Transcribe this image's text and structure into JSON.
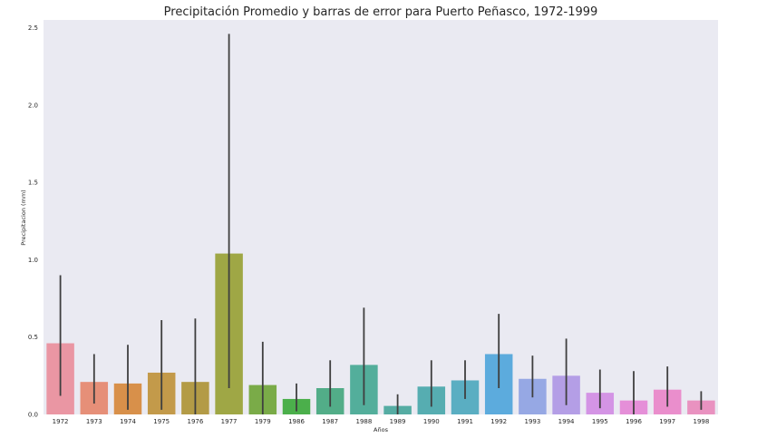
{
  "chart_data": {
    "type": "bar",
    "title": "Precipitación Promedio y barras de error para Puerto Peñasco, 1972-1999",
    "xlabel": "Años",
    "ylabel": "Precipitacion (mm)",
    "ylim": [
      0,
      2.55
    ],
    "yticks": [
      "0.0",
      "0.5",
      "1.0",
      "1.5",
      "2.0",
      "2.5"
    ],
    "categories": [
      "1972",
      "1973",
      "1974",
      "1975",
      "1976",
      "1977",
      "1979",
      "1986",
      "1987",
      "1988",
      "1989",
      "1990",
      "1991",
      "1992",
      "1993",
      "1994",
      "1995",
      "1996",
      "1997",
      "1998"
    ],
    "values": [
      0.46,
      0.21,
      0.2,
      0.27,
      0.21,
      1.04,
      0.19,
      0.1,
      0.17,
      0.32,
      0.055,
      0.18,
      0.22,
      0.39,
      0.23,
      0.25,
      0.14,
      0.09,
      0.16,
      0.09
    ],
    "error_low": [
      0.12,
      0.07,
      0.03,
      0.03,
      0.0,
      0.17,
      0.0,
      0.02,
      0.05,
      0.06,
      0.0,
      0.05,
      0.1,
      0.17,
      0.11,
      0.06,
      0.04,
      0.0,
      0.05,
      0.03
    ],
    "error_high": [
      0.9,
      0.39,
      0.45,
      0.61,
      0.62,
      2.46,
      0.47,
      0.2,
      0.35,
      0.69,
      0.13,
      0.35,
      0.35,
      0.65,
      0.38,
      0.49,
      0.29,
      0.28,
      0.31,
      0.15
    ],
    "colors": [
      "#ea96a3",
      "#e68f78",
      "#d8904a",
      "#c39a4a",
      "#b39b46",
      "#9fa745",
      "#7aab48",
      "#4baf4b",
      "#52ad88",
      "#53ae9b",
      "#55aca3",
      "#56adb1",
      "#5aaec2",
      "#5cabdd",
      "#96a8e4",
      "#b49ee6",
      "#d494e5",
      "#e58fd8",
      "#ea8ecc",
      "#e992c0"
    ],
    "grid": true,
    "background": "#eaeaf2"
  }
}
